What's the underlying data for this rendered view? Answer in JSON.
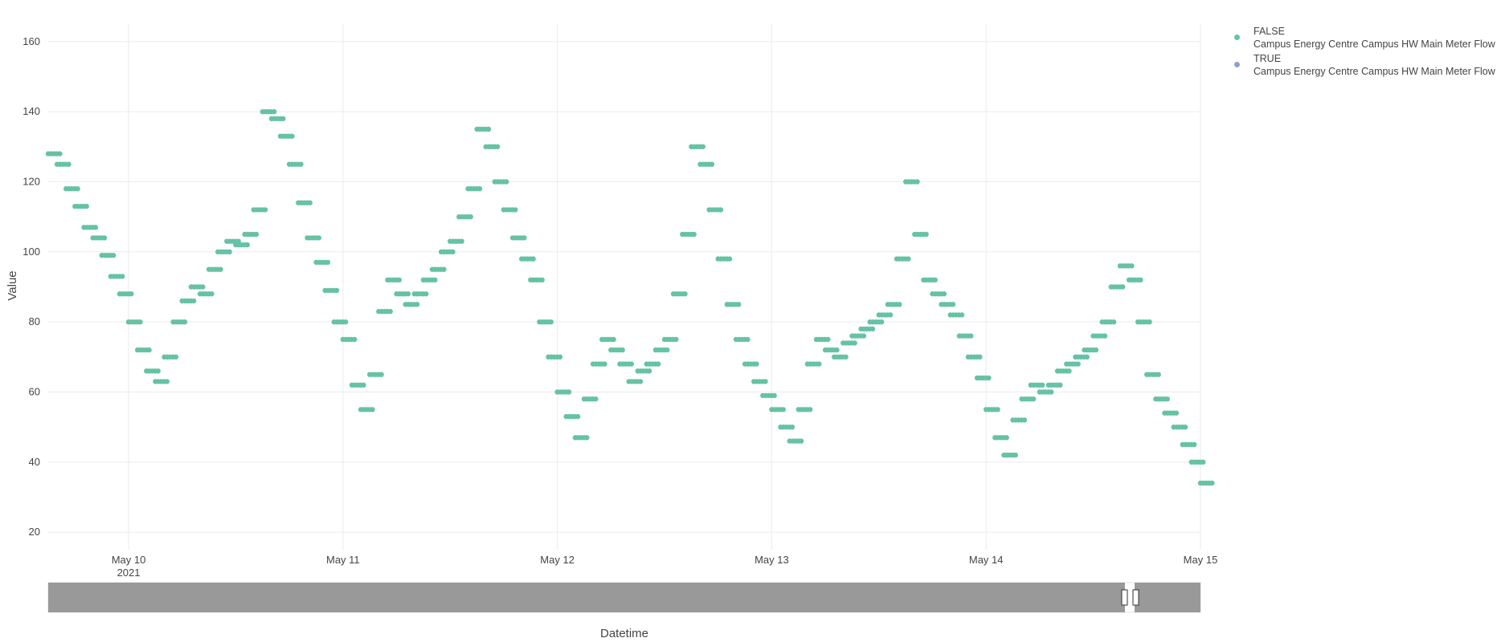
{
  "chart_data": {
    "type": "scatter",
    "xlabel": "Datetime",
    "ylabel": "Value",
    "ylim": [
      15,
      165
    ],
    "xlim": [
      "2021-05-09 15:00",
      "2021-05-15 00:00"
    ],
    "y_ticks": [
      20,
      40,
      60,
      80,
      100,
      120,
      140,
      160
    ],
    "x_ticks": [
      {
        "date": "2021-05-10",
        "label": "May 10",
        "sublabel": "2021"
      },
      {
        "date": "2021-05-11",
        "label": "May 11",
        "sublabel": ""
      },
      {
        "date": "2021-05-12",
        "label": "May 12",
        "sublabel": ""
      },
      {
        "date": "2021-05-13",
        "label": "May 13",
        "sublabel": ""
      },
      {
        "date": "2021-05-14",
        "label": "May 14",
        "sublabel": ""
      },
      {
        "date": "2021-05-15",
        "label": "May 15",
        "sublabel": ""
      }
    ],
    "grid": true,
    "legend_position": "top-right",
    "series": [
      {
        "name": "FALSE",
        "subname": "Campus Energy Centre Campus HW Main Meter Flow",
        "color": "#66c2a5",
        "points": [
          [
            "2021-05-09 15:00",
            128
          ],
          [
            "2021-05-09 16:00",
            125
          ],
          [
            "2021-05-09 17:00",
            118
          ],
          [
            "2021-05-09 18:00",
            113
          ],
          [
            "2021-05-09 19:00",
            107
          ],
          [
            "2021-05-09 20:00",
            104
          ],
          [
            "2021-05-09 21:00",
            99
          ],
          [
            "2021-05-09 22:00",
            93
          ],
          [
            "2021-05-09 23:00",
            88
          ],
          [
            "2021-05-10 00:00",
            80
          ],
          [
            "2021-05-10 01:00",
            72
          ],
          [
            "2021-05-10 02:00",
            66
          ],
          [
            "2021-05-10 03:00",
            63
          ],
          [
            "2021-05-10 04:00",
            70
          ],
          [
            "2021-05-10 05:00",
            80
          ],
          [
            "2021-05-10 06:00",
            86
          ],
          [
            "2021-05-10 07:00",
            90
          ],
          [
            "2021-05-10 08:00",
            88
          ],
          [
            "2021-05-10 09:00",
            95
          ],
          [
            "2021-05-10 10:00",
            100
          ],
          [
            "2021-05-10 11:00",
            103
          ],
          [
            "2021-05-10 12:00",
            102
          ],
          [
            "2021-05-10 13:00",
            105
          ],
          [
            "2021-05-10 14:00",
            112
          ],
          [
            "2021-05-10 15:00",
            140
          ],
          [
            "2021-05-10 16:00",
            138
          ],
          [
            "2021-05-10 17:00",
            133
          ],
          [
            "2021-05-10 18:00",
            125
          ],
          [
            "2021-05-10 19:00",
            114
          ],
          [
            "2021-05-10 20:00",
            104
          ],
          [
            "2021-05-10 21:00",
            97
          ],
          [
            "2021-05-10 22:00",
            89
          ],
          [
            "2021-05-10 23:00",
            80
          ],
          [
            "2021-05-11 00:00",
            75
          ],
          [
            "2021-05-11 01:00",
            62
          ],
          [
            "2021-05-11 02:00",
            55
          ],
          [
            "2021-05-11 03:00",
            65
          ],
          [
            "2021-05-11 04:00",
            83
          ],
          [
            "2021-05-11 05:00",
            92
          ],
          [
            "2021-05-11 06:00",
            88
          ],
          [
            "2021-05-11 07:00",
            85
          ],
          [
            "2021-05-11 08:00",
            88
          ],
          [
            "2021-05-11 09:00",
            92
          ],
          [
            "2021-05-11 10:00",
            95
          ],
          [
            "2021-05-11 11:00",
            100
          ],
          [
            "2021-05-11 12:00",
            103
          ],
          [
            "2021-05-11 13:00",
            110
          ],
          [
            "2021-05-11 14:00",
            118
          ],
          [
            "2021-05-11 15:00",
            135
          ],
          [
            "2021-05-11 16:00",
            130
          ],
          [
            "2021-05-11 17:00",
            120
          ],
          [
            "2021-05-11 18:00",
            112
          ],
          [
            "2021-05-11 19:00",
            104
          ],
          [
            "2021-05-11 20:00",
            98
          ],
          [
            "2021-05-11 21:00",
            92
          ],
          [
            "2021-05-11 22:00",
            80
          ],
          [
            "2021-05-11 23:00",
            70
          ],
          [
            "2021-05-12 00:00",
            60
          ],
          [
            "2021-05-12 01:00",
            53
          ],
          [
            "2021-05-12 02:00",
            47
          ],
          [
            "2021-05-12 03:00",
            58
          ],
          [
            "2021-05-12 04:00",
            68
          ],
          [
            "2021-05-12 05:00",
            75
          ],
          [
            "2021-05-12 06:00",
            72
          ],
          [
            "2021-05-12 07:00",
            68
          ],
          [
            "2021-05-12 08:00",
            63
          ],
          [
            "2021-05-12 09:00",
            66
          ],
          [
            "2021-05-12 10:00",
            68
          ],
          [
            "2021-05-12 11:00",
            72
          ],
          [
            "2021-05-12 12:00",
            75
          ],
          [
            "2021-05-12 13:00",
            88
          ],
          [
            "2021-05-12 14:00",
            105
          ],
          [
            "2021-05-12 15:00",
            130
          ],
          [
            "2021-05-12 16:00",
            125
          ],
          [
            "2021-05-12 17:00",
            112
          ],
          [
            "2021-05-12 18:00",
            98
          ],
          [
            "2021-05-12 19:00",
            85
          ],
          [
            "2021-05-12 20:00",
            75
          ],
          [
            "2021-05-12 21:00",
            68
          ],
          [
            "2021-05-12 22:00",
            63
          ],
          [
            "2021-05-12 23:00",
            59
          ],
          [
            "2021-05-13 00:00",
            55
          ],
          [
            "2021-05-13 01:00",
            50
          ],
          [
            "2021-05-13 02:00",
            46
          ],
          [
            "2021-05-13 03:00",
            55
          ],
          [
            "2021-05-13 04:00",
            68
          ],
          [
            "2021-05-13 05:00",
            75
          ],
          [
            "2021-05-13 06:00",
            72
          ],
          [
            "2021-05-13 07:00",
            70
          ],
          [
            "2021-05-13 08:00",
            74
          ],
          [
            "2021-05-13 09:00",
            76
          ],
          [
            "2021-05-13 10:00",
            78
          ],
          [
            "2021-05-13 11:00",
            80
          ],
          [
            "2021-05-13 12:00",
            82
          ],
          [
            "2021-05-13 13:00",
            85
          ],
          [
            "2021-05-13 14:00",
            98
          ],
          [
            "2021-05-13 15:00",
            120
          ],
          [
            "2021-05-13 16:00",
            105
          ],
          [
            "2021-05-13 17:00",
            92
          ],
          [
            "2021-05-13 18:00",
            88
          ],
          [
            "2021-05-13 19:00",
            85
          ],
          [
            "2021-05-13 20:00",
            82
          ],
          [
            "2021-05-13 21:00",
            76
          ],
          [
            "2021-05-13 22:00",
            70
          ],
          [
            "2021-05-13 23:00",
            64
          ],
          [
            "2021-05-14 00:00",
            55
          ],
          [
            "2021-05-14 01:00",
            47
          ],
          [
            "2021-05-14 02:00",
            42
          ],
          [
            "2021-05-14 03:00",
            52
          ],
          [
            "2021-05-14 04:00",
            58
          ],
          [
            "2021-05-14 05:00",
            62
          ],
          [
            "2021-05-14 06:00",
            60
          ],
          [
            "2021-05-14 07:00",
            62
          ],
          [
            "2021-05-14 08:00",
            66
          ],
          [
            "2021-05-14 09:00",
            68
          ],
          [
            "2021-05-14 10:00",
            70
          ],
          [
            "2021-05-14 11:00",
            72
          ],
          [
            "2021-05-14 12:00",
            76
          ],
          [
            "2021-05-14 13:00",
            80
          ],
          [
            "2021-05-14 14:00",
            90
          ],
          [
            "2021-05-14 15:00",
            96
          ],
          [
            "2021-05-14 16:00",
            92
          ],
          [
            "2021-05-14 17:00",
            80
          ],
          [
            "2021-05-14 18:00",
            65
          ],
          [
            "2021-05-14 19:00",
            58
          ],
          [
            "2021-05-14 20:00",
            54
          ],
          [
            "2021-05-14 21:00",
            50
          ],
          [
            "2021-05-14 22:00",
            45
          ],
          [
            "2021-05-14 23:00",
            40
          ],
          [
            "2021-05-15 00:00",
            34
          ]
        ]
      },
      {
        "name": "TRUE",
        "subname": "Campus Energy Centre Campus HW Main Meter Flow",
        "color": "#8da0cb",
        "points": []
      }
    ]
  }
}
